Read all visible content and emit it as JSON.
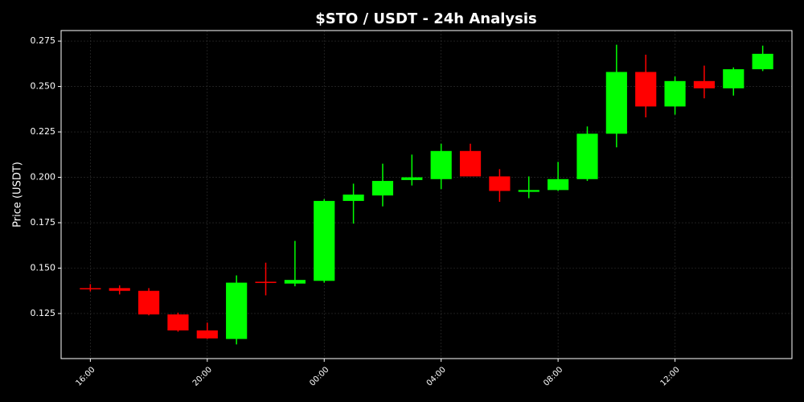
{
  "chart_data": {
    "type": "candlestick",
    "title": "$STO / USDT - 24h Analysis",
    "y_label": "Price (USDT)",
    "categories": [
      "16:00",
      null,
      null,
      null,
      "20:00",
      null,
      null,
      null,
      "00:00",
      null,
      null,
      null,
      "04:00",
      null,
      null,
      null,
      "08:00",
      null,
      null,
      null,
      "12:00",
      null,
      null,
      null
    ],
    "open": [
      0.139,
      0.139,
      0.1375,
      0.1245,
      0.1157,
      0.111,
      0.1425,
      0.1415,
      0.143,
      0.187,
      0.19,
      0.1985,
      0.199,
      0.2145,
      0.2005,
      0.192,
      0.193,
      0.199,
      0.224,
      0.258,
      0.239,
      0.253,
      0.249,
      0.2595
    ],
    "high": [
      0.1412,
      0.1405,
      0.139,
      0.1255,
      0.12,
      0.146,
      0.153,
      0.165,
      0.188,
      0.1965,
      0.2075,
      0.2125,
      0.2185,
      0.2185,
      0.2045,
      0.2005,
      0.2085,
      0.228,
      0.273,
      0.2675,
      0.2555,
      0.2615,
      0.2605,
      0.2725
    ],
    "low": [
      0.1372,
      0.1355,
      0.124,
      0.115,
      0.111,
      0.108,
      0.135,
      0.14,
      0.142,
      0.1745,
      0.184,
      0.1955,
      0.1935,
      0.2005,
      0.1865,
      0.1885,
      0.1925,
      0.198,
      0.2165,
      0.233,
      0.2345,
      0.2435,
      0.245,
      0.2585
    ],
    "close": [
      0.1388,
      0.1375,
      0.1245,
      0.1157,
      0.1113,
      0.142,
      0.142,
      0.1435,
      0.187,
      0.1905,
      0.198,
      0.2,
      0.2145,
      0.2005,
      0.1925,
      0.193,
      0.199,
      0.224,
      0.258,
      0.239,
      0.253,
      0.249,
      0.2595,
      0.268
    ],
    "up_color": "#00ff00",
    "down_color": "#ff0000",
    "ylim": [
      0.1002,
      0.2808
    ],
    "yticks": [
      0.125,
      {
        "value": 0.15,
        "label": "0.150"
      },
      0.175,
      {
        "value": 0.2,
        "label": "0.200"
      },
      0.225,
      {
        "value": 0.25,
        "label": "0.250"
      },
      0.275
    ],
    "grid": true
  }
}
